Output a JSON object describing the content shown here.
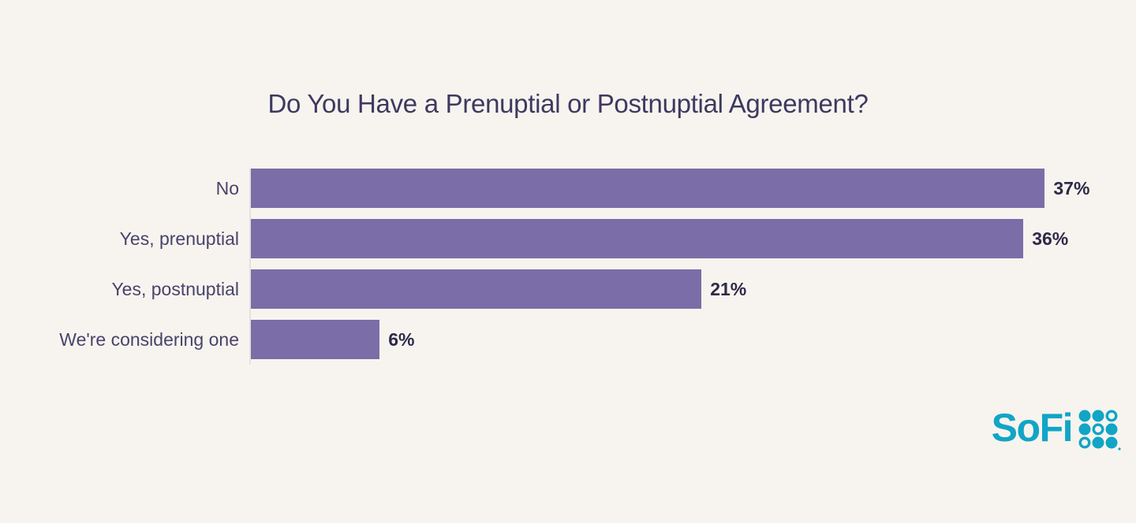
{
  "title": "Do You Have a Prenuptial or Postnuptial Agreement?",
  "colors": {
    "background": "#f7f4ef",
    "bar": "#7b6da7",
    "title_text": "#3e3960",
    "category_text": "#48436a",
    "value_text": "#2d2947",
    "axis_line": "#e6e2da",
    "brand": "#11a5c6"
  },
  "chart_data": {
    "type": "bar",
    "orientation": "horizontal",
    "title": "Do You Have a Prenuptial or Postnuptial Agreement?",
    "categories": [
      "No",
      "Yes, prenuptial",
      "Yes, postnuptial",
      "We're considering one"
    ],
    "values": [
      37,
      36,
      21,
      6
    ],
    "value_suffix": "%",
    "value_labels_position": "end-of-bar",
    "xlim": [
      0,
      41
    ],
    "grid": false,
    "legend": false,
    "axis_line": "left-vertical-only"
  },
  "brand": {
    "name": "SoFi"
  }
}
